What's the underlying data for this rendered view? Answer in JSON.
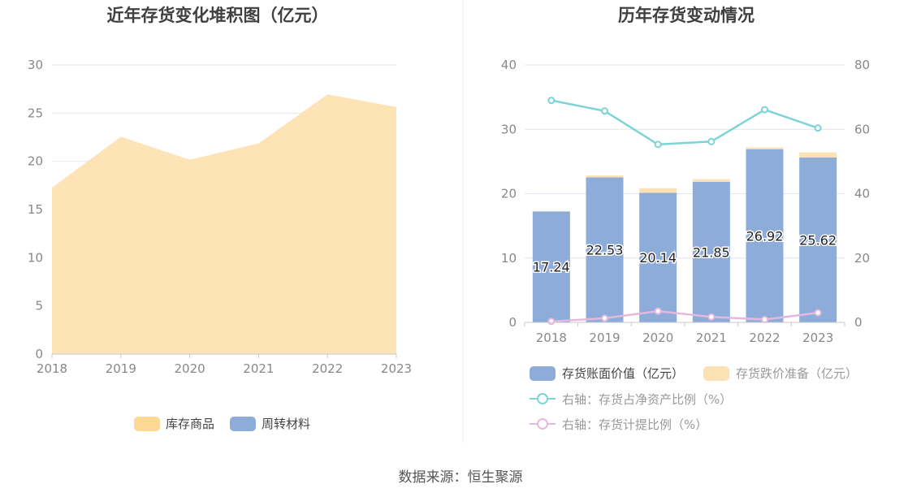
{
  "source": "数据来源：恒生聚源",
  "colors": {
    "area_fill": "#FDE3B6",
    "area_legend": "#FDD895",
    "bar_book": "#8DACD9",
    "bar_reserve": "#FCE1B4",
    "line_ratio": "#7DD3D6",
    "line_provision": "#E4B9DD",
    "grid": "#E3E6F0",
    "axis": "#C8C8C8"
  },
  "chart_data": [
    {
      "type": "area",
      "title": "近年存货变化堆积图（亿元）",
      "categories": [
        "2018",
        "2019",
        "2020",
        "2021",
        "2022",
        "2023"
      ],
      "series": [
        {
          "name": "库存商品",
          "values": [
            17.24,
            22.53,
            20.14,
            21.85,
            26.92,
            25.62
          ]
        },
        {
          "name": "周转材料",
          "values": [
            0.02,
            0.02,
            0.02,
            0.02,
            0.02,
            0.02
          ]
        }
      ],
      "ylim": [
        0,
        30
      ],
      "yticks": [
        "0",
        "5",
        "10",
        "15",
        "20",
        "25",
        "30"
      ],
      "grid": true,
      "legend": "bottom"
    },
    {
      "type": "bar",
      "title": "历年存货变动情况",
      "categories": [
        "2018",
        "2019",
        "2020",
        "2021",
        "2022",
        "2023"
      ],
      "series": [
        {
          "name": "存货账面价值（亿元）",
          "axis": "left",
          "kind": "bar",
          "values": [
            17.24,
            22.53,
            20.14,
            21.85,
            26.92,
            25.62
          ],
          "labels": [
            "17.24",
            "22.53",
            "20.14",
            "21.85",
            "26.92",
            "25.62"
          ]
        },
        {
          "name": "存货跌价准备（亿元）",
          "axis": "left",
          "kind": "bar-stacked",
          "values": [
            0.05,
            0.3,
            0.7,
            0.4,
            0.25,
            0.8
          ]
        },
        {
          "name": "右轴：存货占净资产比例（%）",
          "axis": "right",
          "kind": "line",
          "values": [
            69,
            65.7,
            55.3,
            56.2,
            66.1,
            60.4
          ]
        },
        {
          "name": "右轴：存货计提比例（%）",
          "axis": "right",
          "kind": "line",
          "values": [
            0.3,
            1.3,
            3.5,
            1.7,
            0.9,
            3.0
          ]
        }
      ],
      "ylim_left": [
        0,
        40
      ],
      "yticks_left": [
        "0",
        "10",
        "20",
        "30",
        "40"
      ],
      "ylim_right": [
        0,
        80
      ],
      "yticks_right": [
        "0",
        "20",
        "40",
        "60",
        "80"
      ],
      "grid": true,
      "legend": "bottom"
    }
  ]
}
